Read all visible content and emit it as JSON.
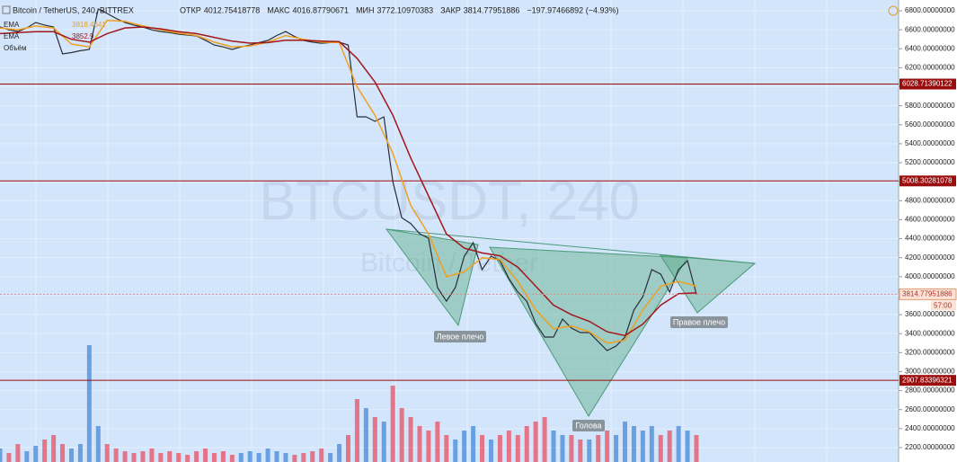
{
  "chart_data": {
    "type": "line",
    "title": "Bitcoin / TetherUS, 240, BITTREX",
    "ohlc": [
      {
        "label": "ОТКР",
        "value": 4012.75418778
      },
      {
        "label": "МАКС",
        "value": 4016.87790671
      },
      {
        "label": "МИН",
        "value": 3772.10970383
      },
      {
        "label": "ЗАКР",
        "value": 3814.77951886
      }
    ],
    "change": "−197.97466892 (−4.93%)",
    "watermark": [
      "BTCUSDT, 240",
      "Bitcoin / Tether"
    ],
    "annotations": [
      "Левое плечо",
      "Голова",
      "Правое плечо"
    ],
    "ylim": [
      2048,
      6914
    ],
    "yticks": [
      {
        "value": 6800,
        "label": "6800.00000000"
      },
      {
        "value": 6600,
        "label": "6600.00000000"
      },
      {
        "value": 6400,
        "label": "6400.00000000"
      },
      {
        "value": 6200,
        "label": "6200.00000000"
      },
      {
        "value": 6000,
        "label": "6000.00000000"
      },
      {
        "value": 5800,
        "label": "5800.00000000"
      },
      {
        "value": 5600,
        "label": "5600.00000000"
      },
      {
        "value": 5400,
        "label": "5400.00000000"
      },
      {
        "value": 5200,
        "label": "5200.00000000"
      },
      {
        "value": 5000,
        "label": "5000.00000000"
      },
      {
        "value": 4800,
        "label": "4800.00000000"
      },
      {
        "value": 4600,
        "label": "4600.00000000"
      },
      {
        "value": 4400,
        "label": "4400.00000000"
      },
      {
        "value": 4200,
        "label": "4200.00000000"
      },
      {
        "value": 4000,
        "label": "4000.00000000"
      },
      {
        "value": 3800,
        "label": "3800.00000000"
      },
      {
        "value": 3600,
        "label": "3600.00000000"
      },
      {
        "value": 3400,
        "label": "3400.00000000"
      },
      {
        "value": 3200,
        "label": "3200.00000000"
      },
      {
        "value": 3000,
        "label": "3000.00000000"
      },
      {
        "value": 2800,
        "label": "2800.00000000"
      },
      {
        "value": 2600,
        "label": "2600.00000000"
      },
      {
        "value": 2400,
        "label": "2400.00000000"
      },
      {
        "value": 2200,
        "label": "2200.00000000"
      }
    ],
    "grid": true,
    "levels": [
      6028.71390122,
      5008.30281078,
      2907.83396321
    ],
    "level_color": "#9b0d0d",
    "last_price": 3814.77951886,
    "countdown": "57:00",
    "series": [
      {
        "color": "#2a2e39",
        "values": [
          6630,
          6600,
          6582,
          6620,
          6677,
          6650,
          6630,
          6346,
          6360,
          6380,
          6393,
          6819,
          6772,
          6720,
          6677,
          6650,
          6630,
          6600,
          6582,
          6570,
          6554,
          6545,
          6535,
          6490,
          6440,
          6420,
          6393,
          6420,
          6440,
          6465,
          6488,
          6540,
          6582,
          6530,
          6488,
          6470,
          6459,
          6465,
          6469,
          6440,
          5683,
          5683,
          5636,
          5683,
          5000,
          4620,
          4560,
          4453,
          4405,
          3885,
          3742,
          3885,
          4216,
          4358,
          4074,
          4216,
          4169,
          3980,
          3838,
          3742,
          3506,
          3364,
          3364,
          3553,
          3459,
          3411,
          3411,
          3317,
          3222,
          3269,
          3364,
          3648,
          3790,
          4074,
          4027,
          3838,
          4074,
          4169,
          3815
        ]
      },
      {
        "name": "EMA",
        "value_label": "3818.4641",
        "color": "#f0a020",
        "values": [
          6620,
          6600,
          6640,
          6620,
          6450,
          6420,
          6700,
          6690,
          6640,
          6600,
          6565,
          6540,
          6470,
          6420,
          6430,
          6470,
          6540,
          6500,
          6470,
          6465,
          6000,
          5700,
          5300,
          4750,
          4450,
          4000,
          4050,
          4200,
          4180,
          3950,
          3650,
          3450,
          3480,
          3420,
          3300,
          3330,
          3650,
          3900,
          3950,
          3900
        ]
      },
      {
        "name": "EMA",
        "value_label": "3852.9",
        "color": "#a3171b",
        "values": [
          6560,
          6570,
          6580,
          6580,
          6500,
          6470,
          6560,
          6620,
          6630,
          6610,
          6580,
          6560,
          6520,
          6480,
          6460,
          6465,
          6490,
          6490,
          6480,
          6475,
          6300,
          6050,
          5700,
          5250,
          4850,
          4450,
          4300,
          4250,
          4220,
          4100,
          3900,
          3700,
          3600,
          3530,
          3420,
          3380,
          3500,
          3700,
          3820,
          3830
        ]
      }
    ],
    "volume": {
      "name": "Объём",
      "up_color": "#4f8fdc",
      "down_color": "#e8576a",
      "lim": [
        0,
        160
      ],
      "values": [
        15,
        10,
        20,
        12,
        18,
        25,
        30,
        20,
        15,
        20,
        130,
        40,
        20,
        15,
        12,
        10,
        12,
        15,
        10,
        12,
        10,
        8,
        12,
        15,
        10,
        12,
        8,
        10,
        12,
        10,
        15,
        12,
        10,
        8,
        10,
        12,
        15,
        10,
        20,
        30,
        70,
        60,
        50,
        45,
        85,
        60,
        50,
        40,
        35,
        45,
        30,
        25,
        35,
        40,
        30,
        25,
        30,
        35,
        30,
        40,
        45,
        50,
        35,
        30,
        30,
        25,
        25,
        30,
        35,
        30,
        45,
        40,
        35,
        40,
        30,
        35,
        40,
        35,
        30
      ]
    }
  }
}
